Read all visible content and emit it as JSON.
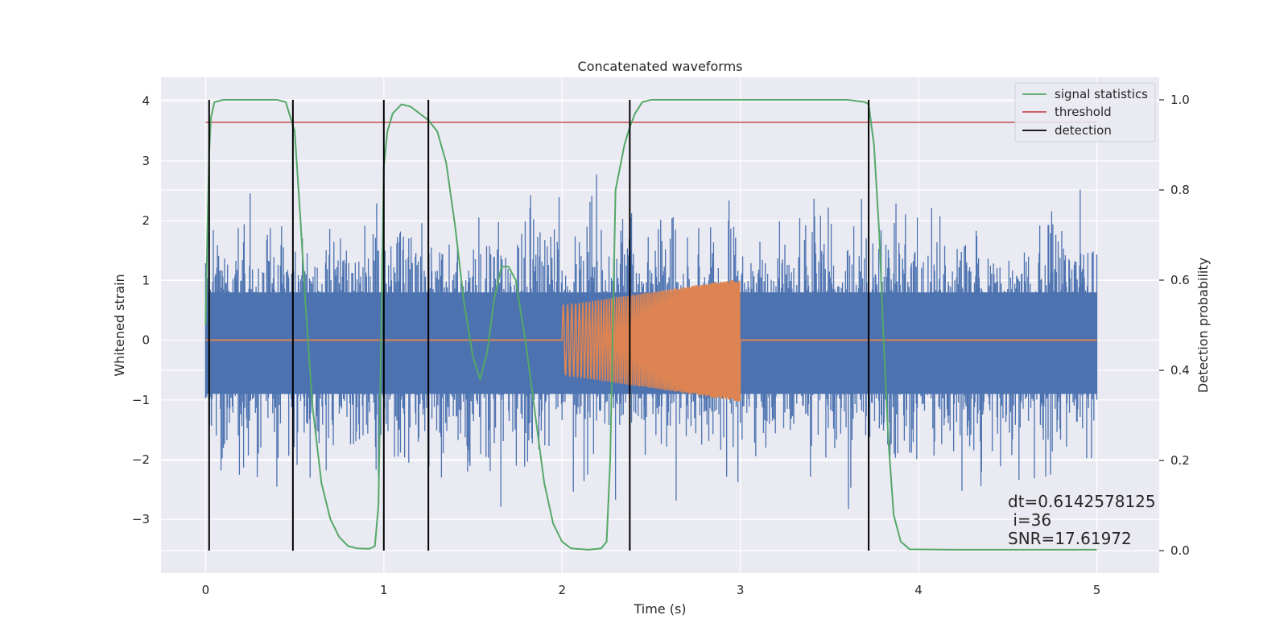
{
  "chart_data": {
    "type": "line",
    "title": "Concatenated waveforms",
    "xlabel": "Time (s)",
    "ylabel": "Whitened strain",
    "y2label": "Detection probability",
    "xlim": [
      -0.25,
      5.35
    ],
    "ylim": [
      -3.9,
      4.4
    ],
    "y2lim": [
      -0.05,
      1.05
    ],
    "xticks": [
      0,
      1,
      2,
      3,
      4,
      5
    ],
    "yticks": [
      -3,
      -2,
      -1,
      0,
      1,
      2,
      3,
      4
    ],
    "y2ticks": [
      0.0,
      0.2,
      0.4,
      0.6,
      0.8,
      1.0
    ],
    "xtick_labels": [
      "0",
      "1",
      "2",
      "3",
      "4",
      "5"
    ],
    "ytick_labels": [
      "−3",
      "−2",
      "−1",
      "0",
      "1",
      "2",
      "3",
      "4"
    ],
    "y2tick_labels": [
      "0.0",
      "0.2",
      "0.4",
      "0.6",
      "0.8",
      "1.0"
    ],
    "grid": true,
    "legend_position": "top-right",
    "legend": [
      {
        "name": "signal statistics",
        "color": "#55a868"
      },
      {
        "name": "threshold",
        "color": "#c44e52"
      },
      {
        "name": "detection",
        "color": "#000000"
      }
    ],
    "colors": {
      "strain": "#4c72b0",
      "injection": "#dd8452",
      "signal_statistics": "#55a868",
      "threshold": "#c44e52",
      "detection": "#000000",
      "plot_background": "#eaeaf2"
    },
    "noise": {
      "x_start": 0,
      "x_end": 5,
      "typical_amplitude": 2.1,
      "peak_max": 4.05,
      "peak_min": -3.55
    },
    "injection_chirp": {
      "x_start": 2.0,
      "x_end": 3.0,
      "amp_start": 0.58,
      "amp_end": 1.03,
      "baseline": 0
    },
    "threshold": {
      "value": 0.95,
      "x_range": [
        0,
        5
      ]
    },
    "detections": [
      0.02,
      0.49,
      1.0,
      1.25,
      2.38,
      3.72
    ],
    "signal_statistics": [
      [
        0.0,
        0.5
      ],
      [
        0.01,
        0.7
      ],
      [
        0.02,
        0.88
      ],
      [
        0.03,
        0.96
      ],
      [
        0.05,
        0.995
      ],
      [
        0.1,
        1.0
      ],
      [
        0.4,
        1.0
      ],
      [
        0.45,
        0.995
      ],
      [
        0.5,
        0.93
      ],
      [
        0.53,
        0.75
      ],
      [
        0.56,
        0.55
      ],
      [
        0.6,
        0.32
      ],
      [
        0.65,
        0.15
      ],
      [
        0.7,
        0.07
      ],
      [
        0.75,
        0.03
      ],
      [
        0.8,
        0.01
      ],
      [
        0.85,
        0.005
      ],
      [
        0.92,
        0.004
      ],
      [
        0.95,
        0.01
      ],
      [
        0.97,
        0.1
      ],
      [
        0.99,
        0.6
      ],
      [
        1.0,
        0.85
      ],
      [
        1.02,
        0.93
      ],
      [
        1.05,
        0.97
      ],
      [
        1.1,
        0.99
      ],
      [
        1.15,
        0.985
      ],
      [
        1.2,
        0.97
      ],
      [
        1.25,
        0.955
      ],
      [
        1.3,
        0.93
      ],
      [
        1.35,
        0.86
      ],
      [
        1.4,
        0.72
      ],
      [
        1.45,
        0.55
      ],
      [
        1.5,
        0.43
      ],
      [
        1.54,
        0.38
      ],
      [
        1.58,
        0.44
      ],
      [
        1.62,
        0.56
      ],
      [
        1.66,
        0.63
      ],
      [
        1.7,
        0.63
      ],
      [
        1.74,
        0.6
      ],
      [
        1.8,
        0.45
      ],
      [
        1.85,
        0.3
      ],
      [
        1.9,
        0.15
      ],
      [
        1.95,
        0.06
      ],
      [
        2.0,
        0.02
      ],
      [
        2.05,
        0.005
      ],
      [
        2.15,
        0.002
      ],
      [
        2.22,
        0.005
      ],
      [
        2.25,
        0.02
      ],
      [
        2.27,
        0.2
      ],
      [
        2.3,
        0.8
      ],
      [
        2.35,
        0.9
      ],
      [
        2.38,
        0.94
      ],
      [
        2.41,
        0.97
      ],
      [
        2.45,
        0.995
      ],
      [
        2.5,
        1.0
      ],
      [
        3.6,
        1.0
      ],
      [
        3.7,
        0.995
      ],
      [
        3.72,
        0.99
      ],
      [
        3.75,
        0.9
      ],
      [
        3.78,
        0.7
      ],
      [
        3.8,
        0.5
      ],
      [
        3.83,
        0.25
      ],
      [
        3.86,
        0.08
      ],
      [
        3.9,
        0.02
      ],
      [
        3.95,
        0.003
      ],
      [
        4.2,
        0.002
      ],
      [
        4.6,
        0.002
      ],
      [
        5.0,
        0.002
      ]
    ],
    "annotations": [
      "dt=0.6142578125",
      " i=36",
      "SNR=17.61972"
    ]
  }
}
